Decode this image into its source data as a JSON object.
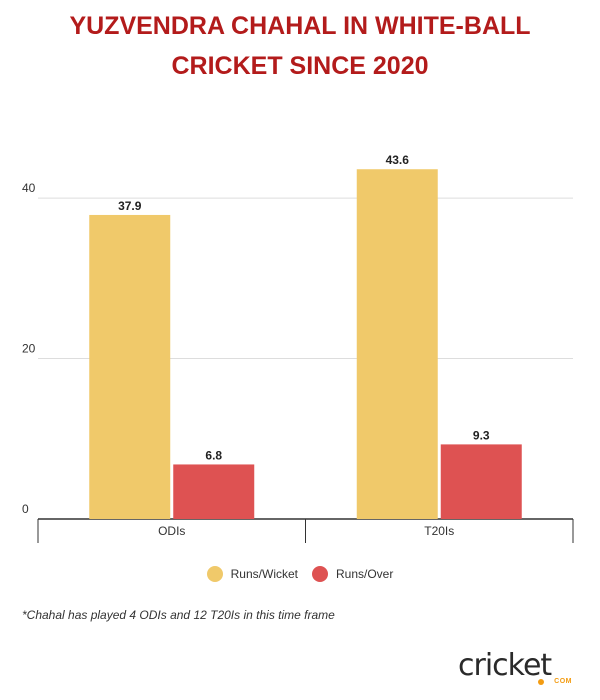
{
  "title_lines": [
    "YUZVENDRA CHAHAL IN WHITE-BALL",
    "CRICKET SINCE 2020"
  ],
  "chart_data": {
    "type": "bar",
    "categories": [
      "ODIs",
      "T20Is"
    ],
    "series": [
      {
        "name": "Runs/Wicket",
        "values": [
          37.9,
          43.6
        ],
        "color": "#f0c96a"
      },
      {
        "name": "Runs/Over",
        "values": [
          6.8,
          9.3
        ],
        "color": "#de5252"
      }
    ],
    "yticks": [
      0,
      20,
      40
    ],
    "ylim": [
      0,
      45
    ],
    "grid": true,
    "legend_position": "bottom"
  },
  "footnote": "*Chahal has played 4 ODIs and 12 T20Is in this time frame",
  "logo": {
    "text": "cricket",
    "sub": "COM",
    "accent": "#f39c12"
  },
  "colors": {
    "title": "#b31b1b",
    "grid": "#dddddd",
    "axis": "#333333"
  }
}
